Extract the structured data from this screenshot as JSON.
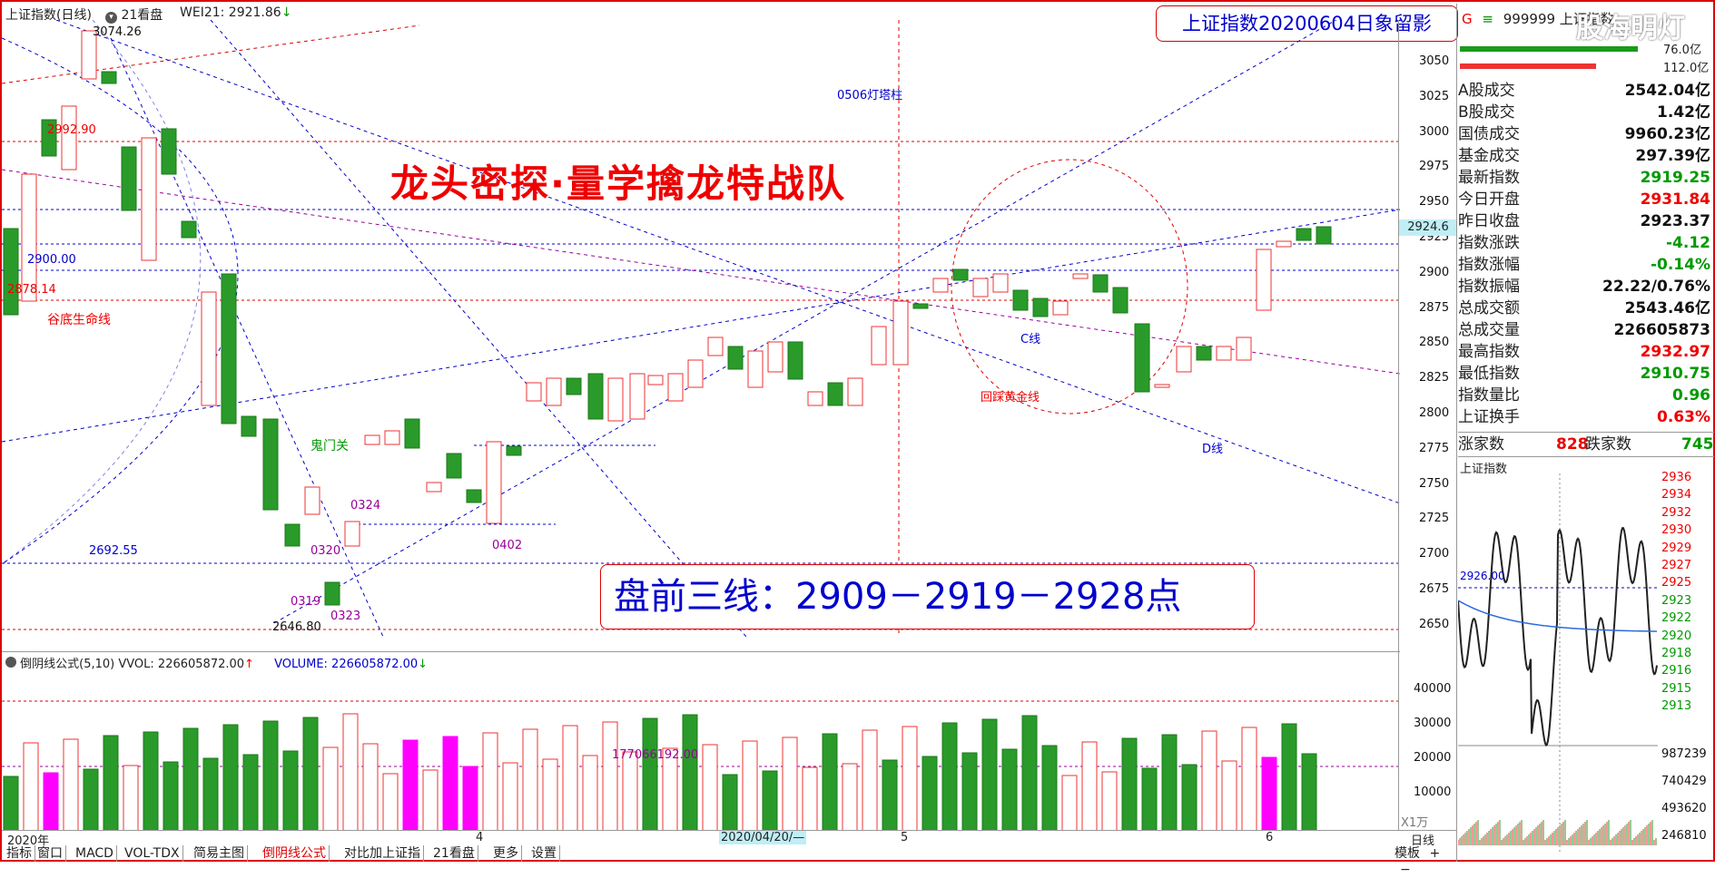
{
  "header": {
    "title": "上证指数(日线)",
    "view_mode": "21看盘",
    "indicator": "WEI21: 2921.86",
    "badge": "上证指数20200604日象留影",
    "watermark": "股海明灯"
  },
  "main_chart": {
    "ylabels": [
      "3050",
      "3025",
      "3000",
      "2975",
      "2950",
      "2925",
      "2900",
      "2875",
      "2850",
      "2825",
      "2800",
      "2775",
      "2750",
      "2725",
      "2700",
      "2675",
      "2650"
    ],
    "current_price": "2924.6",
    "banner_title": "龙头密探·量学擒龙特战队",
    "premarket": "盘前三线：2909－2919－2928点",
    "annotations": {
      "high": "3074.26",
      "p2992": "2992.90",
      "p2900": "2900.00",
      "p2878": "2878.14",
      "gudi": "谷底生命线",
      "guimen": "鬼门关",
      "p2692": "2692.55",
      "low": "2646.80",
      "d0319": "0319",
      "d0320": "0320",
      "d0323": "0323",
      "d0324": "0324",
      "d0402": "0402",
      "lighthouse": "0506灯塔柱",
      "golden": "回踩黄金线",
      "cline": "C线",
      "dline": "D线"
    }
  },
  "volume_chart": {
    "formula": "倒阴线公式(5,10)",
    "vvol": "VVOL: 226605872.00",
    "volume": "VOLUME: 226605872.00",
    "ylabels": [
      "40000",
      "30000",
      "20000",
      "10000"
    ],
    "unit": "X1万",
    "mid_label": "177066192.00"
  },
  "x_axis": {
    "year": "2020年",
    "m4": "4",
    "m5": "5",
    "m6": "6",
    "cursor_date": "2020/04/20/—",
    "period": "日线"
  },
  "tabs": [
    "指标",
    "窗口",
    "MACD",
    "VOL-TDX",
    "简易主图",
    "倒阴线公式",
    "对比加上证指",
    "21看盘",
    "更多",
    "设置"
  ],
  "right_tabs": [
    "模板",
    "+",
    "−"
  ],
  "side_panel": {
    "g": "G",
    "code": "999999 上证指数",
    "vol_top": "76.0亿",
    "vol_bottom": "112.0亿",
    "rows": [
      {
        "label": "A股成交",
        "value": "2542.04亿",
        "color": "#111"
      },
      {
        "label": "B股成交",
        "value": "1.42亿",
        "color": "#111"
      },
      {
        "label": "国债成交",
        "value": "9960.23亿",
        "color": "#111"
      },
      {
        "label": "基金成交",
        "value": "297.39亿",
        "color": "#111"
      },
      {
        "label": "最新指数",
        "value": "2919.25",
        "color": "#090"
      },
      {
        "label": "今日开盘",
        "value": "2931.84",
        "color": "#e00"
      },
      {
        "label": "昨日收盘",
        "value": "2923.37",
        "color": "#111"
      },
      {
        "label": "指数涨跌",
        "value": "-4.12",
        "color": "#090"
      },
      {
        "label": "指数涨幅",
        "value": "-0.14%",
        "color": "#090"
      },
      {
        "label": "指数振幅",
        "value": "22.22/0.76%",
        "color": "#111"
      },
      {
        "label": "总成交额",
        "value": "2543.46亿",
        "color": "#111"
      },
      {
        "label": "总成交量",
        "value": "226605873",
        "color": "#111"
      },
      {
        "label": "最高指数",
        "value": "2932.97",
        "color": "#e00"
      },
      {
        "label": "最低指数",
        "value": "2910.75",
        "color": "#090"
      },
      {
        "label": "指数量比",
        "value": "0.96",
        "color": "#090"
      },
      {
        "label": "上证换手",
        "value": "0.63%",
        "color": "#e00"
      }
    ],
    "up_label": "涨家数",
    "up_value": "828",
    "down_label": "跌家数",
    "down_value": "745",
    "mini_title": "上证指数",
    "mini_ylabels": [
      "2936",
      "2934",
      "2932",
      "2930",
      "2929",
      "2927",
      "2925",
      "2923",
      "2922",
      "2920",
      "2918",
      "2916",
      "2915",
      "2913"
    ],
    "mini_ref": "2926.00",
    "mini_vol_labels": [
      "987239",
      "740429",
      "493620",
      "246810"
    ]
  }
}
